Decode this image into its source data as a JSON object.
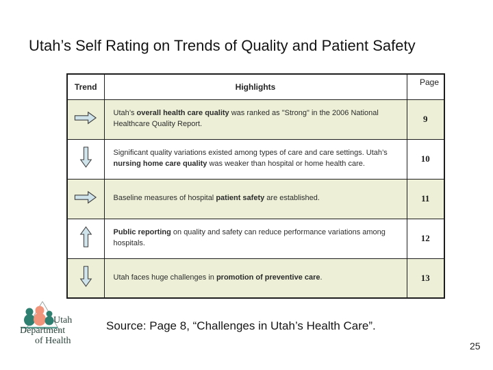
{
  "slide": {
    "title": "Utah’s Self Rating on Trends of Quality and Patient Safety",
    "source_note": "Source: Page 8, “Challenges in Utah’s Health Care”.",
    "page_number": "25"
  },
  "table": {
    "headers": {
      "trend": "Trend",
      "highlights": "Highlights",
      "page": "Page"
    },
    "rows": [
      {
        "trend": "right-arrow",
        "segments": [
          {
            "text": "Utah’s ",
            "bold": false
          },
          {
            "text": "overall health care quality",
            "bold": true
          },
          {
            "text": " was ranked as \"Strong\" in the 2006 National Healthcare Quality Report.",
            "bold": false
          }
        ],
        "page": "9",
        "shaded": true
      },
      {
        "trend": "down-arrow",
        "segments": [
          {
            "text": "Significant quality variations existed among types of care and care settings. Utah’s ",
            "bold": false
          },
          {
            "text": "nursing home care quality",
            "bold": true
          },
          {
            "text": " was weaker than hospital or home health care.",
            "bold": false
          }
        ],
        "page": "10",
        "shaded": false
      },
      {
        "trend": "right-arrow",
        "segments": [
          {
            "text": "Baseline measures of hospital ",
            "bold": false
          },
          {
            "text": "patient safety",
            "bold": true
          },
          {
            "text": " are established.",
            "bold": false
          }
        ],
        "page": "11",
        "shaded": true
      },
      {
        "trend": "up-arrow",
        "segments": [
          {
            "text": "Public reporting",
            "bold": true
          },
          {
            "text": " on quality and safety can reduce performance variations among hospitals.",
            "bold": false
          }
        ],
        "page": "12",
        "shaded": false
      },
      {
        "trend": "down-arrow",
        "segments": [
          {
            "text": "Utah faces huge challenges in ",
            "bold": false
          },
          {
            "text": "promotion of preventive care",
            "bold": true
          },
          {
            "text": ".",
            "bold": false
          }
        ],
        "page": "13",
        "shaded": true
      }
    ]
  },
  "logo": {
    "line1": "Utah",
    "line2": "Department",
    "line3": "of Health"
  },
  "colors": {
    "row_shade": "#edf0d7",
    "arrow_fill": "#cfe3eb",
    "arrow_stroke": "#3f3f3f",
    "table_border": "#1c1c1c",
    "logo_text": "#2c443c",
    "logo_teal": "#2e7f70",
    "logo_salmon": "#f0957c"
  }
}
